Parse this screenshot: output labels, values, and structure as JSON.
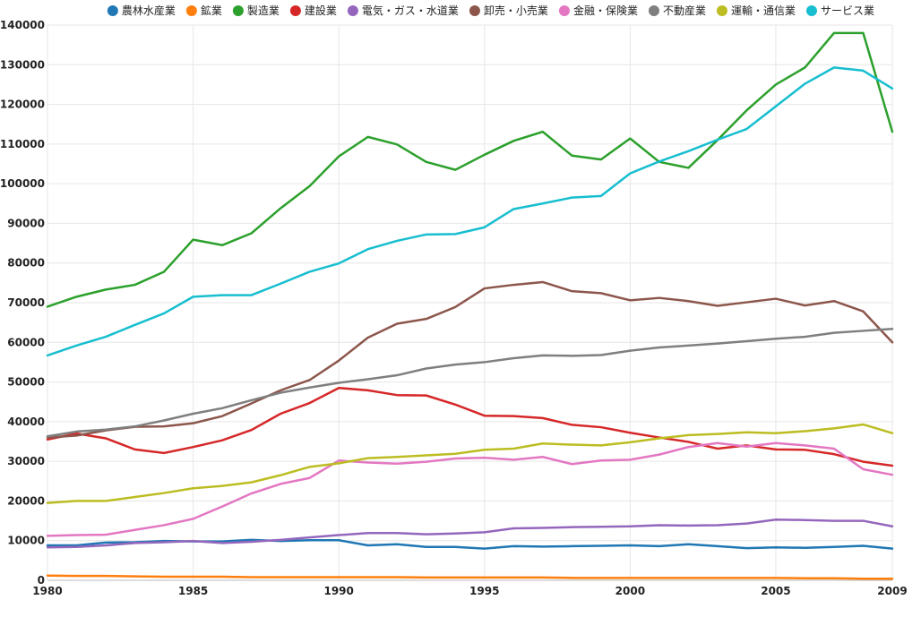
{
  "chart_data": {
    "type": "line",
    "x": [
      1980,
      1981,
      1982,
      1983,
      1984,
      1985,
      1986,
      1987,
      1988,
      1989,
      1990,
      1991,
      1992,
      1993,
      1994,
      1995,
      1996,
      1997,
      1998,
      1999,
      2000,
      2001,
      2002,
      2003,
      2004,
      2005,
      2006,
      2007,
      2008,
      2009
    ],
    "xlim": [
      1980,
      2009
    ],
    "ylim": [
      0,
      140000
    ],
    "x_ticks": [
      "1980",
      "1985",
      "1990",
      "1995",
      "2000",
      "2005",
      "2009"
    ],
    "y_ticks": [
      "0",
      "10000",
      "20000",
      "30000",
      "40000",
      "50000",
      "60000",
      "70000",
      "80000",
      "90000",
      "100000",
      "110000",
      "120000",
      "130000",
      "140000"
    ],
    "grid": true,
    "legend_position": "top",
    "series": [
      {
        "name": "農林水産業",
        "color": "#1f77b4",
        "values": [
          8800,
          8800,
          9500,
          9600,
          9900,
          9800,
          9800,
          10200,
          9900,
          10100,
          10100,
          8800,
          9100,
          8400,
          8400,
          8000,
          8600,
          8500,
          8600,
          8700,
          8800,
          8600,
          9100,
          8600,
          8100,
          8300,
          8200,
          8400,
          8700,
          8000
        ]
      },
      {
        "name": "鉱業",
        "color": "#ff7f0e",
        "values": [
          1200,
          1100,
          1100,
          1000,
          900,
          900,
          900,
          800,
          800,
          800,
          800,
          800,
          800,
          700,
          700,
          700,
          700,
          700,
          600,
          600,
          600,
          600,
          600,
          600,
          600,
          600,
          500,
          500,
          400,
          400
        ]
      },
      {
        "name": "製造業",
        "color": "#2ca02c",
        "values": [
          69000,
          71500,
          73300,
          74500,
          77800,
          85900,
          84500,
          87500,
          93800,
          99400,
          106900,
          111800,
          109900,
          105500,
          103500,
          107300,
          110800,
          113100,
          107100,
          106100,
          111400,
          105500,
          104000,
          111000,
          118500,
          125000,
          129300,
          138000,
          138000,
          113100
        ]
      },
      {
        "name": "建設業",
        "color": "#d62728",
        "values": [
          35500,
          37000,
          35800,
          33000,
          32100,
          33600,
          35300,
          37900,
          42000,
          44700,
          48500,
          47900,
          46700,
          46600,
          44300,
          41500,
          41400,
          40900,
          39200,
          38600,
          37200,
          36000,
          34900,
          33200,
          34000,
          33000,
          32900,
          31800,
          29900,
          28900
        ]
      },
      {
        "name": "電気・ガス・水道業",
        "color": "#9467bd",
        "values": [
          8300,
          8400,
          8800,
          9400,
          9600,
          9900,
          9400,
          9700,
          10200,
          10800,
          11400,
          11900,
          11900,
          11600,
          11800,
          12100,
          13100,
          13200,
          13400,
          13500,
          13600,
          13900,
          13800,
          13900,
          14300,
          15300,
          15200,
          15000,
          15000,
          13600
        ]
      },
      {
        "name": "卸売・小売業",
        "color": "#8c564b",
        "values": [
          36000,
          36500,
          37800,
          38700,
          38800,
          39600,
          41400,
          44600,
          47900,
          50500,
          55400,
          61200,
          64700,
          65900,
          68900,
          73600,
          74500,
          75200,
          72900,
          72400,
          70600,
          71200,
          70400,
          69200,
          70100,
          71000,
          69300,
          70400,
          67800,
          60000
        ]
      },
      {
        "name": "金融・保険業",
        "color": "#e377c2",
        "values": [
          11200,
          11400,
          11500,
          12700,
          13900,
          15500,
          18600,
          21900,
          24300,
          25800,
          30200,
          29700,
          29400,
          29900,
          30700,
          30900,
          30400,
          31100,
          29300,
          30200,
          30400,
          31700,
          33600,
          34600,
          33700,
          34600,
          34000,
          33200,
          28000,
          26600
        ]
      },
      {
        "name": "不動産業",
        "color": "#7f7f7f",
        "values": [
          36300,
          37500,
          38000,
          38800,
          40300,
          42000,
          43400,
          45400,
          47300,
          48600,
          49800,
          50700,
          51700,
          53400,
          54400,
          55000,
          56000,
          56700,
          56600,
          56800,
          57900,
          58700,
          59200,
          59700,
          60300,
          60900,
          61400,
          62400,
          62900,
          63400
        ]
      },
      {
        "name": "運輸・通信業",
        "color": "#bcbd22",
        "values": [
          19500,
          20000,
          20000,
          21000,
          22000,
          23200,
          23800,
          24700,
          26500,
          28600,
          29500,
          30800,
          31100,
          31500,
          31900,
          32900,
          33200,
          34500,
          34200,
          34000,
          34800,
          35800,
          36600,
          36900,
          37300,
          37100,
          37600,
          38300,
          39300,
          37100
        ]
      },
      {
        "name": "サービス業",
        "color": "#17becf",
        "values": [
          56700,
          59200,
          61400,
          64400,
          67300,
          71500,
          71900,
          71900,
          74800,
          77800,
          79900,
          83500,
          85600,
          87200,
          87300,
          89000,
          93600,
          95000,
          96500,
          96900,
          102600,
          105600,
          108200,
          111100,
          113800,
          119500,
          125200,
          129300,
          128500,
          124000
        ]
      }
    ]
  }
}
